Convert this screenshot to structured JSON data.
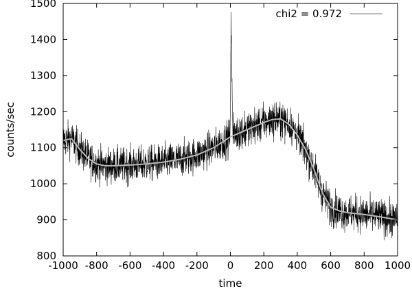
{
  "chart_data": {
    "type": "line",
    "title": "",
    "xlabel": "time",
    "ylabel": "counts/sec",
    "xlim": [
      -1000,
      1000
    ],
    "ylim": [
      800,
      1500
    ],
    "x_ticks": [
      -1000,
      -800,
      -600,
      -400,
      -200,
      0,
      200,
      400,
      600,
      800,
      1000
    ],
    "y_ticks": [
      800,
      900,
      1000,
      1100,
      1200,
      1300,
      1400,
      1500
    ],
    "grid": false,
    "legend": {
      "placement": "top-right",
      "entry": "chi2 = 0.972"
    },
    "series": [
      {
        "style": "noisy-data",
        "color": "#000000",
        "model_x": [
          -1000,
          -950,
          -900,
          -850,
          -800,
          -750,
          -700,
          -600,
          -500,
          -400,
          -300,
          -200,
          -100,
          0,
          100,
          200,
          250,
          300,
          350,
          400,
          450,
          500,
          550,
          600,
          650,
          700,
          800,
          900,
          1000
        ],
        "model_y": [
          1120,
          1125,
          1095,
          1070,
          1055,
          1050,
          1050,
          1052,
          1055,
          1060,
          1068,
          1080,
          1100,
          1130,
          1150,
          1170,
          1178,
          1180,
          1165,
          1135,
          1095,
          1040,
          975,
          935,
          925,
          920,
          915,
          908,
          900
        ],
        "noise_amplitude": 35,
        "spike": {
          "x": 0,
          "peak": 1490,
          "width": 15
        }
      },
      {
        "name": "chi2 = 0.972",
        "style": "fit",
        "color": "#bbbbbb",
        "x": [
          -1000,
          -950,
          -900,
          -850,
          -800,
          -750,
          -700,
          -600,
          -500,
          -400,
          -300,
          -200,
          -100,
          0,
          100,
          200,
          250,
          300,
          350,
          400,
          450,
          500,
          550,
          600,
          650,
          700,
          800,
          900,
          1000
        ],
        "y": [
          1120,
          1125,
          1095,
          1070,
          1055,
          1050,
          1050,
          1052,
          1055,
          1060,
          1068,
          1080,
          1100,
          1130,
          1150,
          1170,
          1178,
          1180,
          1165,
          1135,
          1095,
          1040,
          975,
          935,
          925,
          920,
          915,
          908,
          900
        ]
      }
    ]
  }
}
